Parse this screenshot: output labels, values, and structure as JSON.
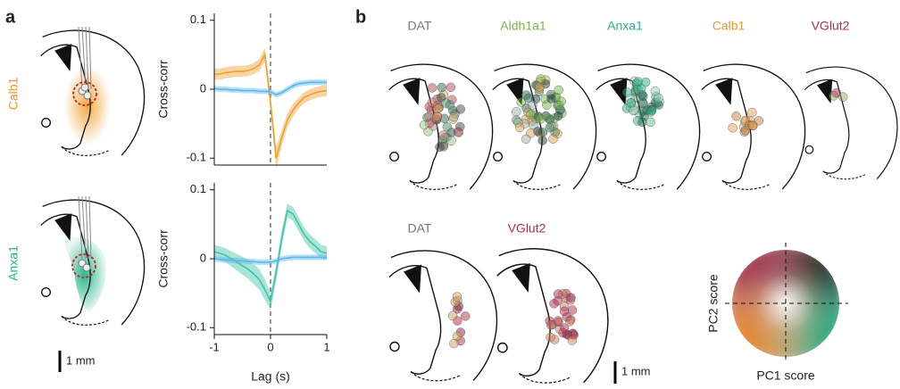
{
  "panel_a": {
    "label": "a",
    "rows": [
      "Calb1",
      "Anxa1"
    ],
    "scale_bar": "1 mm"
  },
  "panel_b": {
    "label": "b",
    "top_row": [
      "DAT",
      "Aldh1a1",
      "Anxa1",
      "Calb1",
      "VGlut2"
    ],
    "bottom_row": [
      "DAT",
      "VGlut2"
    ],
    "scale_bar": "1 mm",
    "color_map": {
      "x_label": "PC1 score",
      "y_label": "PC2 score"
    }
  },
  "chart_data": [
    {
      "type": "line",
      "x": [
        -1,
        -0.9,
        -0.8,
        -0.7,
        -0.6,
        -0.5,
        -0.4,
        -0.3,
        -0.2,
        -0.1,
        0,
        0.1,
        0.2,
        0.3,
        0.4,
        0.5,
        0.6,
        0.7,
        0.8,
        0.9,
        1
      ],
      "xlim": [
        -1,
        1
      ],
      "ylim": [
        -0.11,
        0.11
      ],
      "yticks": [
        -0.1,
        0,
        0.1
      ],
      "y_label": "Cross-corr",
      "series": [
        {
          "color": "#f0a030",
          "values": [
            0.022,
            0.022,
            0.024,
            0.025,
            0.026,
            0.026,
            0.027,
            0.03,
            0.035,
            0.05,
            -0.02,
            -0.1,
            -0.07,
            -0.045,
            -0.03,
            -0.02,
            -0.012,
            -0.008,
            -0.005,
            -0.003,
            -0.002
          ],
          "errors": [
            0.008,
            0.008,
            0.008,
            0.008,
            0.008,
            0.008,
            0.008,
            0.008,
            0.009,
            0.01,
            0.012,
            0.015,
            0.012,
            0.01,
            0.009,
            0.008,
            0.008,
            0.008,
            0.008,
            0.008,
            0.008
          ]
        },
        {
          "color": "#5bb8e8",
          "values": [
            0.001,
            0.0,
            0.0,
            -0.001,
            -0.001,
            -0.002,
            -0.002,
            -0.002,
            -0.003,
            -0.003,
            -0.004,
            -0.008,
            -0.005,
            0.0,
            0.005,
            0.008,
            0.009,
            0.01,
            0.01,
            0.01,
            0.01
          ],
          "errors": [
            0.004,
            0.004,
            0.004,
            0.004,
            0.004,
            0.004,
            0.004,
            0.004,
            0.004,
            0.004,
            0.004,
            0.004,
            0.004,
            0.004,
            0.004,
            0.004,
            0.004,
            0.004,
            0.004,
            0.004,
            0.004
          ]
        }
      ]
    },
    {
      "type": "line",
      "x": [
        -1,
        -0.9,
        -0.8,
        -0.7,
        -0.6,
        -0.5,
        -0.4,
        -0.3,
        -0.2,
        -0.1,
        0,
        0.1,
        0.2,
        0.3,
        0.4,
        0.5,
        0.6,
        0.7,
        0.8,
        0.9,
        1
      ],
      "xlim": [
        -1,
        1
      ],
      "ylim": [
        -0.11,
        0.11
      ],
      "yticks": [
        -0.1,
        0,
        0.1
      ],
      "xticks": [
        -1,
        0,
        1
      ],
      "y_label": "Cross-corr",
      "x_label": "Lag (s)",
      "series": [
        {
          "color": "#3ec4a8",
          "values": [
            0.01,
            0.008,
            0.005,
            0.0,
            -0.005,
            -0.01,
            -0.015,
            -0.022,
            -0.03,
            -0.045,
            -0.062,
            -0.02,
            0.03,
            0.07,
            0.065,
            0.05,
            0.035,
            0.025,
            0.018,
            0.01,
            0.008
          ],
          "errors": [
            0.01,
            0.01,
            0.01,
            0.011,
            0.012,
            0.013,
            0.014,
            0.015,
            0.015,
            0.015,
            0.012,
            0.012,
            0.012,
            0.01,
            0.01,
            0.01,
            0.01,
            0.01,
            0.01,
            0.01,
            0.01
          ]
        },
        {
          "color": "#5bb8e8",
          "values": [
            0.0,
            -0.001,
            -0.002,
            -0.002,
            -0.003,
            -0.003,
            -0.004,
            -0.004,
            -0.005,
            -0.005,
            -0.005,
            -0.003,
            0.0,
            0.001,
            0.002,
            0.002,
            0.002,
            0.002,
            0.002,
            0.002,
            0.002
          ],
          "errors": [
            0.004,
            0.004,
            0.004,
            0.004,
            0.004,
            0.004,
            0.004,
            0.004,
            0.004,
            0.004,
            0.004,
            0.004,
            0.004,
            0.004,
            0.004,
            0.004,
            0.004,
            0.004,
            0.004,
            0.004,
            0.004
          ]
        }
      ]
    }
  ]
}
